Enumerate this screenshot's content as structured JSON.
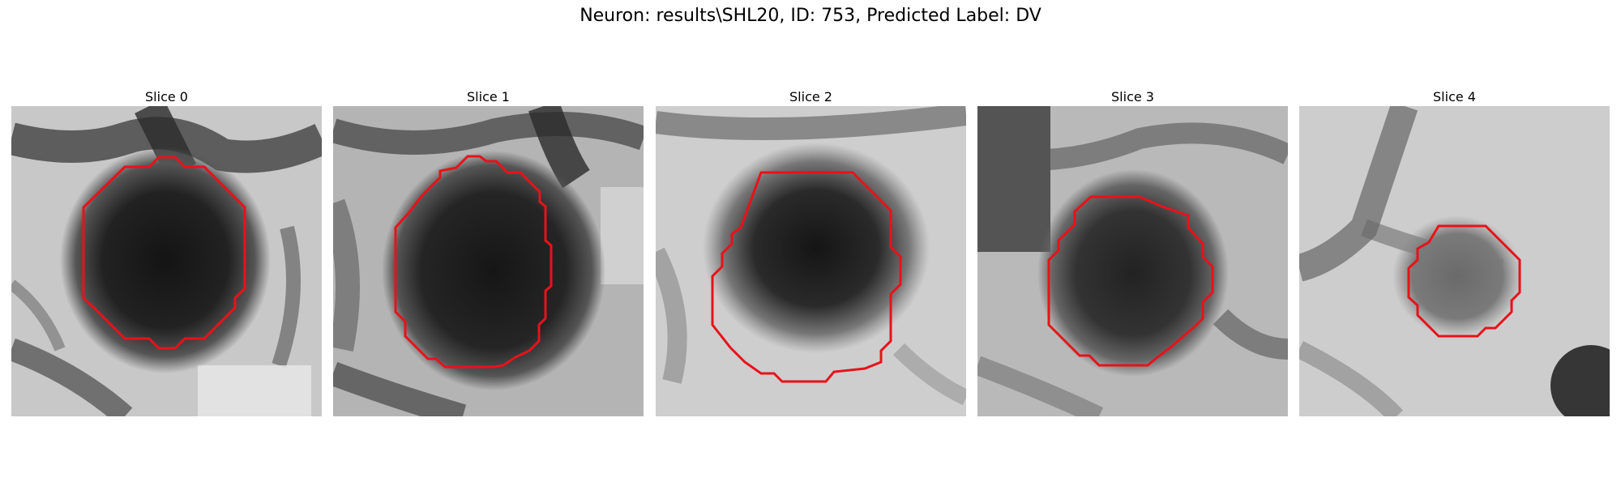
{
  "figure": {
    "title": "Neuron: results\\SHL20, ID: 753, Predicted Label: DV"
  },
  "panels": [
    {
      "title": "Slice 0"
    },
    {
      "title": "Slice 1"
    },
    {
      "title": "Slice 2"
    },
    {
      "title": "Slice 3"
    },
    {
      "title": "Slice 4"
    }
  ],
  "colors": {
    "contour": "#e8121a",
    "background": "#ffffff"
  }
}
